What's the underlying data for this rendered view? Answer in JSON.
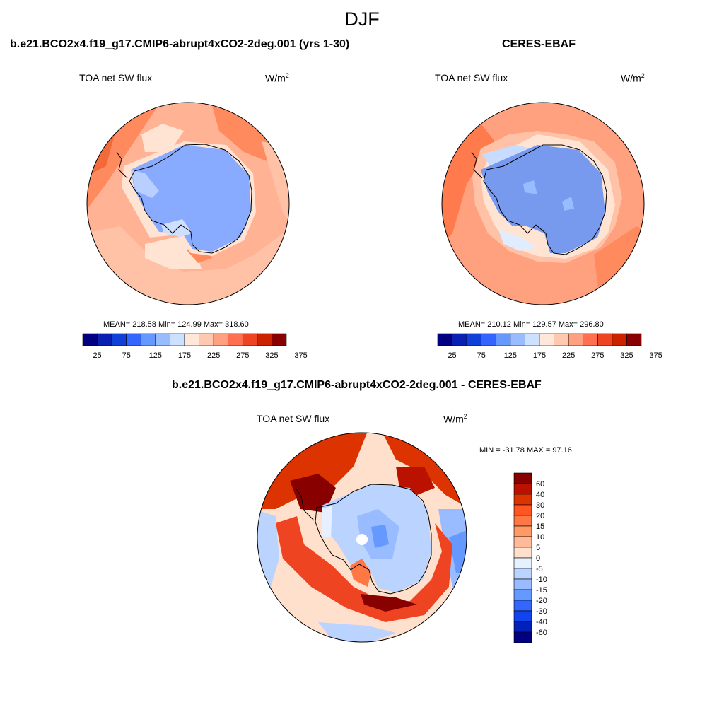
{
  "figure": {
    "title": "DJF"
  },
  "panels": [
    {
      "title": "b.e21.BCO2x4.f19_g17.CMIP6-abrupt4xCO2-2deg.001 (yrs 1-30)",
      "variable": "TOA net SW flux",
      "units_base": "W/m",
      "units_exp": "2",
      "stats": "MEAN= 218.58  Min= 124.99  Max= 318.60",
      "colorbar_ticks": [
        "25",
        "75",
        "125",
        "175",
        "225",
        "275",
        "325",
        "375"
      ]
    },
    {
      "title": "CERES-EBAF",
      "variable": "TOA net SW flux",
      "units_base": "W/m",
      "units_exp": "2",
      "stats": "MEAN= 210.12  Min= 129.57  Max= 296.80",
      "colorbar_ticks": [
        "25",
        "75",
        "125",
        "175",
        "225",
        "275",
        "325",
        "375"
      ]
    },
    {
      "title": "b.e21.BCO2x4.f19_g17.CMIP6-abrupt4xCO2-2deg.001 - CERES-EBAF",
      "variable": "TOA net SW flux",
      "units_base": "W/m",
      "units_exp": "2",
      "stats": "MIN = -31.78 MAX =  97.16",
      "colorbar_labels": [
        "60",
        "40",
        "30",
        "20",
        "15",
        "10",
        "5",
        "0",
        "-5",
        "-10",
        "-15",
        "-20",
        "-30",
        "-40",
        "-60"
      ]
    }
  ],
  "colors": {
    "abs_scale": [
      "#000080",
      "#0a20b0",
      "#1040d8",
      "#3366ff",
      "#6699ff",
      "#99bbff",
      "#cce0ff",
      "#ffe8d8",
      "#ffc8b0",
      "#ffa080",
      "#ff7050",
      "#ee4422",
      "#cc2200",
      "#880000"
    ],
    "diff_scale": [
      "#880000",
      "#bb1100",
      "#dd3300",
      "#ff5522",
      "#ff7744",
      "#ff9966",
      "#ffbb99",
      "#ffe0cc",
      "#e6f0ff",
      "#bbd4ff",
      "#99bbff",
      "#6699ff",
      "#3366ff",
      "#1144ee",
      "#0022bb",
      "#000080"
    ],
    "land_model": "#88aaff",
    "land_obs": "#7799ee",
    "ocean_model": "#ffaa88",
    "ocean_obs": "#ff9977"
  },
  "chart_data": [
    {
      "type": "heatmap",
      "projection": "south-polar-stereographic",
      "title": "b.e21.BCO2x4.f19_g17.CMIP6-abrupt4xCO2-2deg.001 (yrs 1-30)",
      "field": "TOA net SW flux",
      "units": "W/m2",
      "mean": 218.58,
      "min": 124.99,
      "max": 318.6,
      "levels": [
        25,
        50,
        75,
        100,
        125,
        150,
        175,
        200,
        225,
        250,
        275,
        300,
        325,
        350,
        375
      ]
    },
    {
      "type": "heatmap",
      "projection": "south-polar-stereographic",
      "title": "CERES-EBAF",
      "field": "TOA net SW flux",
      "units": "W/m2",
      "mean": 210.12,
      "min": 129.57,
      "max": 296.8,
      "levels": [
        25,
        50,
        75,
        100,
        125,
        150,
        175,
        200,
        225,
        250,
        275,
        300,
        325,
        350,
        375
      ]
    },
    {
      "type": "heatmap",
      "projection": "south-polar-stereographic",
      "title": "b.e21.BCO2x4.f19_g17.CMIP6-abrupt4xCO2-2deg.001 - CERES-EBAF",
      "field": "TOA net SW flux",
      "units": "W/m2",
      "min": -31.78,
      "max": 97.16,
      "levels": [
        -60,
        -40,
        -30,
        -20,
        -15,
        -10,
        -5,
        0,
        5,
        10,
        15,
        20,
        30,
        40,
        60
      ]
    }
  ]
}
